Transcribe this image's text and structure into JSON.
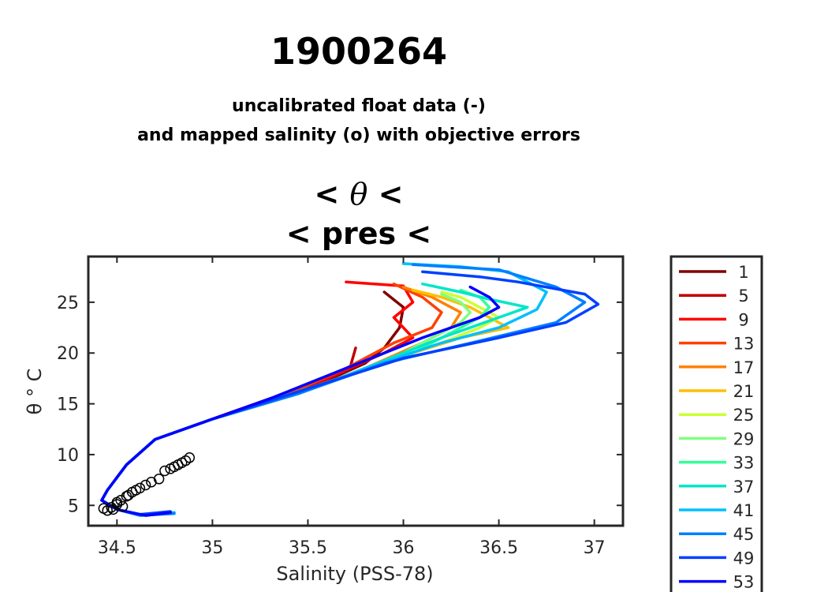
{
  "figure": {
    "title": "1900264",
    "subtitle_line1": "uncalibrated float data (-)",
    "subtitle_line2": "and mapped salinity (o) with objective errors",
    "plot_title_line1_left": "< ",
    "plot_title_symbol": "θ",
    "plot_title_line1_right": " <",
    "plot_title_line2": "< pres <"
  },
  "chart_data": {
    "type": "line",
    "title": "< θ < / < pres <",
    "xlabel": "Salinity (PSS-78)",
    "ylabel": "θ ° C",
    "xlim": [
      34.35,
      37.15
    ],
    "ylim": [
      3,
      29.5
    ],
    "xticks": [
      34.5,
      35,
      35.5,
      36,
      36.5,
      37
    ],
    "xtick_labels": [
      "34.5",
      "35",
      "35.5",
      "36",
      "36.5",
      "37"
    ],
    "yticks": [
      5,
      10,
      15,
      20,
      25
    ],
    "ytick_labels": [
      "5",
      "10",
      "15",
      "20",
      "25"
    ],
    "grid": false,
    "legend_position": "right outside",
    "legend": [
      {
        "label": "1",
        "color": "#800000"
      },
      {
        "label": "5",
        "color": "#bf0000"
      },
      {
        "label": "9",
        "color": "#ff0000"
      },
      {
        "label": "13",
        "color": "#ff4000"
      },
      {
        "label": "17",
        "color": "#ff8000"
      },
      {
        "label": "21",
        "color": "#ffbf00"
      },
      {
        "label": "25",
        "color": "#ccff33"
      },
      {
        "label": "29",
        "color": "#80ff80"
      },
      {
        "label": "33",
        "color": "#33ff99"
      },
      {
        "label": "37",
        "color": "#00e6c8"
      },
      {
        "label": "41",
        "color": "#00bfff"
      },
      {
        "label": "45",
        "color": "#0080ff"
      },
      {
        "label": "49",
        "color": "#0040ff"
      },
      {
        "label": "53",
        "color": "#0000ff"
      }
    ],
    "series": [
      {
        "name": "1",
        "color": "#800000",
        "points": [
          [
            35.9,
            26
          ],
          [
            36.0,
            24.5
          ],
          [
            35.98,
            22.5
          ],
          [
            35.9,
            20.5
          ],
          [
            35.8,
            19
          ],
          [
            35.6,
            17.3
          ],
          [
            35.3,
            15.5
          ],
          [
            35.0,
            13.5
          ],
          [
            34.7,
            11.5
          ],
          [
            34.55,
            9
          ],
          [
            34.45,
            6.5
          ],
          [
            34.42,
            5.5
          ],
          [
            34.5,
            4.6
          ]
        ]
      },
      {
        "name": "5",
        "color": "#bf0000",
        "points": [
          [
            35.75,
            20.5
          ],
          [
            35.72,
            18.5
          ],
          [
            35.55,
            17
          ],
          [
            35.3,
            15.5
          ],
          [
            35.0,
            13.5
          ],
          [
            34.7,
            11.5
          ],
          [
            34.55,
            9
          ],
          [
            34.45,
            6.5
          ],
          [
            34.42,
            5.5
          ],
          [
            34.5,
            4.6
          ]
        ]
      },
      {
        "name": "9",
        "color": "#ff0000",
        "points": [
          [
            35.7,
            27
          ],
          [
            36.0,
            26.6
          ],
          [
            36.05,
            25
          ],
          [
            35.95,
            23.5
          ],
          [
            36.05,
            21.5
          ],
          [
            35.9,
            20
          ],
          [
            35.6,
            17.5
          ],
          [
            35.3,
            15.5
          ],
          [
            35.0,
            13.5
          ],
          [
            34.7,
            11.5
          ],
          [
            34.55,
            9
          ],
          [
            34.45,
            6.5
          ],
          [
            34.42,
            5.5
          ],
          [
            34.5,
            4.6
          ]
        ]
      },
      {
        "name": "13",
        "color": "#ff4000",
        "points": [
          [
            35.95,
            26.8
          ],
          [
            36.1,
            25.5
          ],
          [
            36.2,
            24
          ],
          [
            36.15,
            22.5
          ],
          [
            35.95,
            21
          ],
          [
            35.7,
            18.5
          ],
          [
            35.4,
            16
          ],
          [
            35.0,
            13.5
          ],
          [
            34.7,
            11.5
          ],
          [
            34.55,
            9
          ],
          [
            34.45,
            6.5
          ],
          [
            34.42,
            5.5
          ],
          [
            34.5,
            4.6
          ]
        ]
      },
      {
        "name": "17",
        "color": "#ff8000",
        "points": [
          [
            36.0,
            26.5
          ],
          [
            36.15,
            25.5
          ],
          [
            36.3,
            24
          ],
          [
            36.25,
            22.5
          ],
          [
            36.1,
            21
          ],
          [
            35.8,
            18.5
          ],
          [
            35.45,
            16
          ],
          [
            35.0,
            13.5
          ],
          [
            34.7,
            11.5
          ],
          [
            34.55,
            9
          ],
          [
            34.45,
            6.5
          ],
          [
            34.42,
            5.5
          ],
          [
            34.5,
            4.6
          ]
        ]
      },
      {
        "name": "21",
        "color": "#ffbf00",
        "points": [
          [
            36.05,
            26.2
          ],
          [
            36.2,
            25.5
          ],
          [
            36.35,
            24.5
          ],
          [
            36.45,
            23.5
          ],
          [
            36.55,
            22.5
          ],
          [
            36.3,
            21.5
          ],
          [
            35.8,
            18.5
          ],
          [
            35.45,
            16
          ],
          [
            35.0,
            13.5
          ],
          [
            34.7,
            11.5
          ],
          [
            34.55,
            9
          ],
          [
            34.45,
            6.5
          ],
          [
            34.42,
            5.5
          ],
          [
            34.5,
            4.6
          ]
        ]
      },
      {
        "name": "25",
        "color": "#ccff33",
        "points": [
          [
            36.2,
            26
          ],
          [
            36.3,
            25.5
          ],
          [
            36.4,
            24.5
          ],
          [
            36.5,
            23.5
          ],
          [
            36.4,
            22.5
          ],
          [
            36.2,
            21
          ],
          [
            35.8,
            18.5
          ],
          [
            35.45,
            16
          ],
          [
            35.0,
            13.5
          ],
          [
            34.7,
            11.5
          ],
          [
            34.55,
            9
          ],
          [
            34.45,
            6.5
          ],
          [
            34.42,
            5.5
          ],
          [
            34.5,
            4.6
          ]
        ]
      },
      {
        "name": "29",
        "color": "#80ff80",
        "points": [
          [
            36.2,
            25.8
          ],
          [
            36.3,
            25
          ],
          [
            36.35,
            24
          ],
          [
            36.3,
            23
          ],
          [
            36.2,
            22
          ],
          [
            35.9,
            19
          ],
          [
            35.5,
            16.5
          ],
          [
            35.0,
            13.5
          ],
          [
            34.7,
            11.5
          ],
          [
            34.55,
            9
          ],
          [
            34.45,
            6.5
          ],
          [
            34.42,
            5.5
          ],
          [
            34.5,
            4.6
          ]
        ]
      },
      {
        "name": "33",
        "color": "#33ff99",
        "points": [
          [
            36.3,
            26.2
          ],
          [
            36.4,
            25.5
          ],
          [
            36.45,
            24.5
          ],
          [
            36.4,
            23.5
          ],
          [
            36.3,
            22.5
          ],
          [
            36.0,
            19.5
          ],
          [
            35.5,
            16.5
          ],
          [
            35.0,
            13.5
          ],
          [
            34.7,
            11.5
          ],
          [
            34.55,
            9
          ],
          [
            34.45,
            6.5
          ],
          [
            34.42,
            5.5
          ],
          [
            34.5,
            4.6
          ]
        ]
      },
      {
        "name": "37",
        "color": "#00e6c8",
        "points": [
          [
            36.1,
            26.8
          ],
          [
            36.3,
            26
          ],
          [
            36.45,
            25.3
          ],
          [
            36.65,
            24.5
          ],
          [
            36.5,
            23.5
          ],
          [
            36.2,
            21.5
          ],
          [
            35.8,
            18.5
          ],
          [
            35.45,
            16
          ],
          [
            35.0,
            13.5
          ],
          [
            34.7,
            11.5
          ],
          [
            34.55,
            9
          ],
          [
            34.45,
            6.5
          ],
          [
            34.42,
            5.5
          ],
          [
            34.5,
            4.6
          ]
        ]
      },
      {
        "name": "41",
        "color": "#00bfff",
        "points": [
          [
            36.0,
            28.8
          ],
          [
            36.3,
            28.5
          ],
          [
            36.55,
            28
          ],
          [
            36.75,
            26
          ],
          [
            36.7,
            24.3
          ],
          [
            36.5,
            22.5
          ],
          [
            36.2,
            21
          ],
          [
            35.8,
            18.5
          ],
          [
            35.45,
            16
          ],
          [
            35.0,
            13.5
          ],
          [
            34.7,
            11.5
          ],
          [
            34.55,
            9
          ],
          [
            34.45,
            6.5
          ],
          [
            34.42,
            5.5
          ],
          [
            34.5,
            4.6
          ],
          [
            34.62,
            4.1
          ],
          [
            34.8,
            4.3
          ]
        ]
      },
      {
        "name": "45",
        "color": "#0080ff",
        "points": [
          [
            36.05,
            28.7
          ],
          [
            36.5,
            28.2
          ],
          [
            36.8,
            26.5
          ],
          [
            36.95,
            25
          ],
          [
            36.8,
            23
          ],
          [
            36.4,
            21.2
          ],
          [
            35.9,
            19
          ],
          [
            35.45,
            16
          ],
          [
            35.0,
            13.5
          ],
          [
            34.7,
            11.5
          ],
          [
            34.55,
            9
          ],
          [
            34.45,
            6.5
          ],
          [
            34.42,
            5.5
          ],
          [
            34.5,
            4.6
          ],
          [
            34.62,
            4.0
          ],
          [
            34.8,
            4.2
          ]
        ]
      },
      {
        "name": "49",
        "color": "#0040ff",
        "points": [
          [
            36.1,
            28.0
          ],
          [
            36.4,
            27.5
          ],
          [
            36.6,
            27
          ],
          [
            36.95,
            25.8
          ],
          [
            37.02,
            24.8
          ],
          [
            36.85,
            23
          ],
          [
            36.5,
            21.5
          ],
          [
            36.0,
            19.5
          ],
          [
            35.5,
            16.5
          ],
          [
            35.0,
            13.5
          ],
          [
            34.7,
            11.5
          ],
          [
            34.55,
            9
          ],
          [
            34.45,
            6.5
          ],
          [
            34.42,
            5.5
          ],
          [
            34.5,
            4.6
          ],
          [
            34.62,
            4.1
          ],
          [
            34.78,
            4.4
          ]
        ]
      },
      {
        "name": "53",
        "color": "#0000ff",
        "points": [
          [
            36.35,
            26.5
          ],
          [
            36.45,
            25.5
          ],
          [
            36.5,
            24.5
          ],
          [
            36.4,
            23.5
          ],
          [
            36.1,
            21.5
          ],
          [
            35.7,
            18.5
          ],
          [
            35.3,
            15.5
          ],
          [
            35.0,
            13.5
          ],
          [
            34.7,
            11.5
          ],
          [
            34.55,
            9
          ],
          [
            34.45,
            6.5
          ],
          [
            34.42,
            5.5
          ],
          [
            34.5,
            4.6
          ],
          [
            34.65,
            4.0
          ],
          [
            34.78,
            4.3
          ]
        ]
      }
    ],
    "mapped_points": [
      [
        34.45,
        4.5
      ],
      [
        34.47,
        4.8
      ],
      [
        34.5,
        5.1
      ],
      [
        34.52,
        5.5
      ],
      [
        34.55,
        5.9
      ],
      [
        34.58,
        6.3
      ],
      [
        34.62,
        6.7
      ],
      [
        34.65,
        7.0
      ],
      [
        34.68,
        7.3
      ],
      [
        34.72,
        7.6
      ],
      [
        34.48,
        4.6
      ],
      [
        34.43,
        4.7
      ],
      [
        34.5,
        5.3
      ],
      [
        34.56,
        6.0
      ],
      [
        34.6,
        6.5
      ],
      [
        34.53,
        4.9
      ],
      [
        34.78,
        8.6
      ],
      [
        34.82,
        9.0
      ],
      [
        34.86,
        9.4
      ],
      [
        34.88,
        9.7
      ],
      [
        34.8,
        8.8
      ],
      [
        34.84,
        9.2
      ],
      [
        34.75,
        8.4
      ]
    ]
  }
}
